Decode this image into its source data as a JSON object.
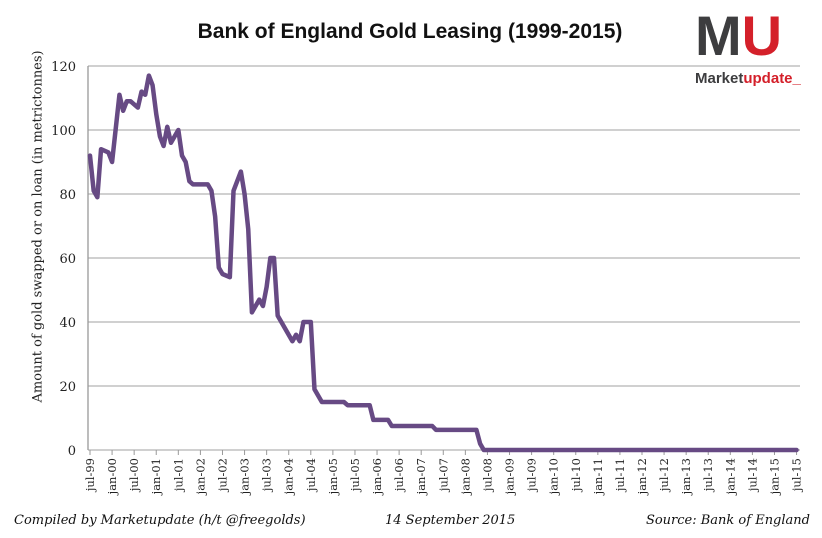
{
  "chart_data": {
    "type": "line",
    "title": "Bank of England Gold Leasing (1999-2015)",
    "xlabel": "",
    "ylabel": "Amount of gold swapped or on loan (in metrictonnes)",
    "ylim": [
      0,
      120
    ],
    "yticks": [
      0,
      20,
      40,
      60,
      80,
      100,
      120
    ],
    "grid": true,
    "legend": "none",
    "line_color": "#674a84",
    "xticks": [
      "jul-99",
      "jan-00",
      "jul-00",
      "jan-01",
      "jul-01",
      "jan-02",
      "jul-02",
      "jan-03",
      "jul-03",
      "jan-04",
      "jul-04",
      "jan-05",
      "jul-05",
      "jan-06",
      "jul-06",
      "jan-07",
      "jul-07",
      "jan-08",
      "jul-08",
      "jan-09",
      "jul-09",
      "jan-10",
      "jul-10",
      "jan-11",
      "jul-11",
      "jan-12",
      "jul-12",
      "jan-13",
      "jul-13",
      "jan-14",
      "jul-14",
      "jan-15",
      "jul-15"
    ],
    "series": [
      {
        "points": [
          [
            "1999-07",
            92
          ],
          [
            "1999-08",
            81
          ],
          [
            "1999-09",
            79
          ],
          [
            "1999-10",
            94
          ],
          [
            "1999-12",
            93
          ],
          [
            "2000-01",
            90
          ],
          [
            "2000-03",
            111
          ],
          [
            "2000-04",
            106
          ],
          [
            "2000-05",
            109
          ],
          [
            "2000-06",
            109
          ],
          [
            "2000-08",
            107
          ],
          [
            "2000-09",
            112
          ],
          [
            "2000-10",
            111
          ],
          [
            "2000-11",
            117
          ],
          [
            "2000-12",
            114
          ],
          [
            "2001-01",
            105
          ],
          [
            "2001-02",
            98
          ],
          [
            "2001-03",
            95
          ],
          [
            "2001-04",
            101
          ],
          [
            "2001-05",
            96
          ],
          [
            "2001-07",
            100
          ],
          [
            "2001-08",
            92
          ],
          [
            "2001-09",
            90
          ],
          [
            "2001-10",
            84
          ],
          [
            "2001-11",
            83
          ],
          [
            "2002-03",
            83
          ],
          [
            "2002-04",
            81
          ],
          [
            "2002-05",
            73
          ],
          [
            "2002-06",
            57
          ],
          [
            "2002-07",
            55
          ],
          [
            "2002-09",
            54
          ],
          [
            "2002-10",
            81
          ],
          [
            "2002-12",
            87
          ],
          [
            "2003-01",
            80
          ],
          [
            "2003-02",
            69
          ],
          [
            "2003-03",
            43
          ],
          [
            "2003-05",
            47
          ],
          [
            "2003-06",
            45
          ],
          [
            "2003-07",
            51
          ],
          [
            "2003-08",
            60
          ],
          [
            "2003-09",
            60
          ],
          [
            "2003-10",
            42
          ],
          [
            "2004-02",
            34
          ],
          [
            "2004-03",
            36
          ],
          [
            "2004-04",
            34
          ],
          [
            "2004-05",
            40
          ],
          [
            "2004-07",
            40
          ],
          [
            "2004-08",
            19
          ],
          [
            "2004-10",
            15
          ],
          [
            "2005-04",
            15
          ],
          [
            "2005-05",
            14
          ],
          [
            "2005-11",
            14
          ],
          [
            "2005-12",
            9.4
          ],
          [
            "2006-04",
            9.4
          ],
          [
            "2006-05",
            7.5
          ],
          [
            "2007-04",
            7.5
          ],
          [
            "2007-05",
            6.3
          ],
          [
            "2008-04",
            6.3
          ],
          [
            "2008-05",
            2
          ],
          [
            "2008-06",
            0
          ],
          [
            "2015-07",
            0
          ]
        ]
      }
    ]
  },
  "logo": {
    "letters_m": "M",
    "letters_u": "U",
    "name_a": "Market",
    "name_b": "update_"
  },
  "footer": {
    "compiled": "Compiled by Marketupdate (h/t @freegolds)",
    "date": "14 September 2015",
    "source": "Source: Bank of England"
  }
}
